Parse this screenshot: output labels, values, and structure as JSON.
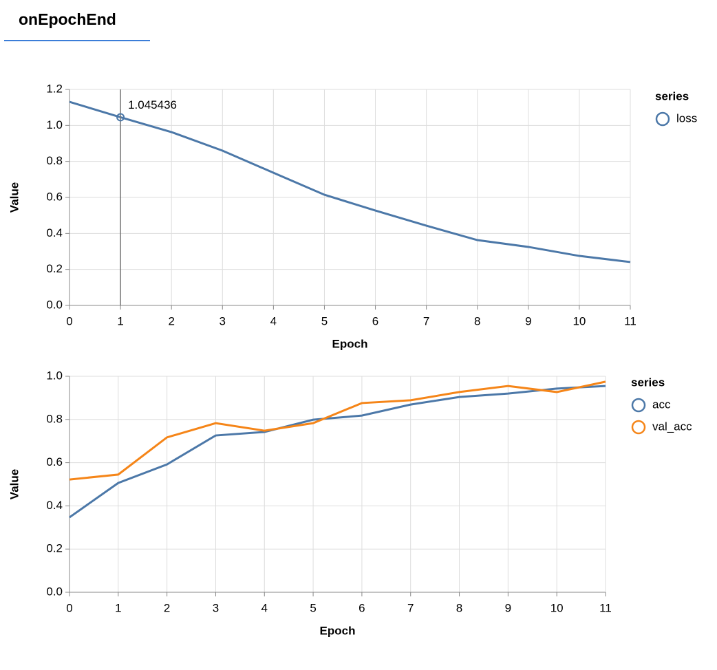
{
  "tab": "onEpochEnd",
  "chart_data": [
    {
      "type": "line",
      "x_label": "Epoch",
      "y_label": "Value",
      "legend_title": "series",
      "x": [
        0,
        1,
        2,
        3,
        4,
        5,
        6,
        7,
        8,
        9,
        10,
        11
      ],
      "series": [
        {
          "name": "loss",
          "color": "#4c78a8",
          "values": [
            1.131,
            1.045436,
            0.963,
            0.86,
            0.737,
            0.615,
            0.527,
            0.443,
            0.363,
            0.325,
            0.275,
            0.241
          ]
        }
      ],
      "xlim": [
        0,
        11
      ],
      "xticks": [
        0,
        1,
        2,
        3,
        4,
        5,
        6,
        7,
        8,
        9,
        10,
        11
      ],
      "ylim": [
        0,
        1.2
      ],
      "yticks": [
        {
          "value": 0,
          "label": "0.0"
        },
        0.2,
        0.4,
        0.6,
        0.8,
        {
          "value": 1,
          "label": "1.0"
        },
        1.2
      ],
      "grid": true,
      "rule_x": 1
    },
    {
      "type": "line",
      "x_label": "Epoch",
      "y_label": "Value",
      "legend_title": "series",
      "x": [
        0,
        1,
        2,
        3,
        4,
        5,
        6,
        7,
        8,
        9,
        10,
        11
      ],
      "series": [
        {
          "name": "acc",
          "color": "#4c78a8",
          "values": [
            0.347,
            0.506,
            0.592,
            0.726,
            0.742,
            0.799,
            0.818,
            0.869,
            0.904,
            0.92,
            0.943,
            0.955
          ]
        },
        {
          "name": "val_acc",
          "color": "#f58518",
          "values": [
            0.522,
            0.545,
            0.717,
            0.783,
            0.748,
            0.783,
            0.876,
            0.889,
            0.927,
            0.955,
            0.927,
            0.975
          ]
        }
      ],
      "xlim": [
        0,
        11
      ],
      "xticks": [
        0,
        1,
        2,
        3,
        4,
        5,
        6,
        7,
        8,
        9,
        10,
        11
      ],
      "ylim": [
        0,
        1
      ],
      "yticks": [
        {
          "value": 0,
          "label": "0.0"
        },
        0.2,
        0.4,
        0.6,
        0.8,
        {
          "value": 1,
          "label": "1.0"
        }
      ],
      "grid": true
    }
  ]
}
